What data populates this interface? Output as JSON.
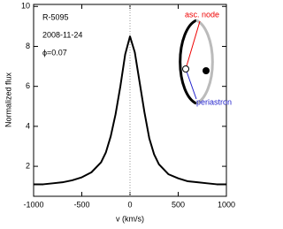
{
  "chart_data": {
    "type": "line",
    "x_label": "v (km/s)",
    "y_label": "Normalized flux",
    "annotations": [
      "R-5095",
      "2008-11-24",
      "ϕ=0.07"
    ],
    "inset_labels": [
      "asc. node",
      "periastron"
    ],
    "x": [
      -1000,
      -900,
      -800,
      -700,
      -600,
      -500,
      -400,
      -300,
      -250,
      -200,
      -150,
      -100,
      -50,
      0,
      50,
      100,
      150,
      200,
      250,
      300,
      400,
      500,
      600,
      700,
      800,
      900,
      1000
    ],
    "series": [
      {
        "color": "#000000",
        "values": [
          1.1,
          1.1,
          1.15,
          1.2,
          1.3,
          1.45,
          1.7,
          2.2,
          2.7,
          3.5,
          4.6,
          6.0,
          7.6,
          8.5,
          7.7,
          6.2,
          4.7,
          3.4,
          2.6,
          2.1,
          1.6,
          1.4,
          1.25,
          1.2,
          1.15,
          1.1,
          1.1
        ]
      }
    ],
    "xlim": [
      -1000,
      1000
    ],
    "xticks": [
      -1000,
      -500,
      0,
      500,
      1000
    ],
    "ylim": [
      0.5,
      10.1
    ],
    "yticks": [
      2,
      4,
      6,
      8,
      10
    ],
    "zero_line": 0
  }
}
